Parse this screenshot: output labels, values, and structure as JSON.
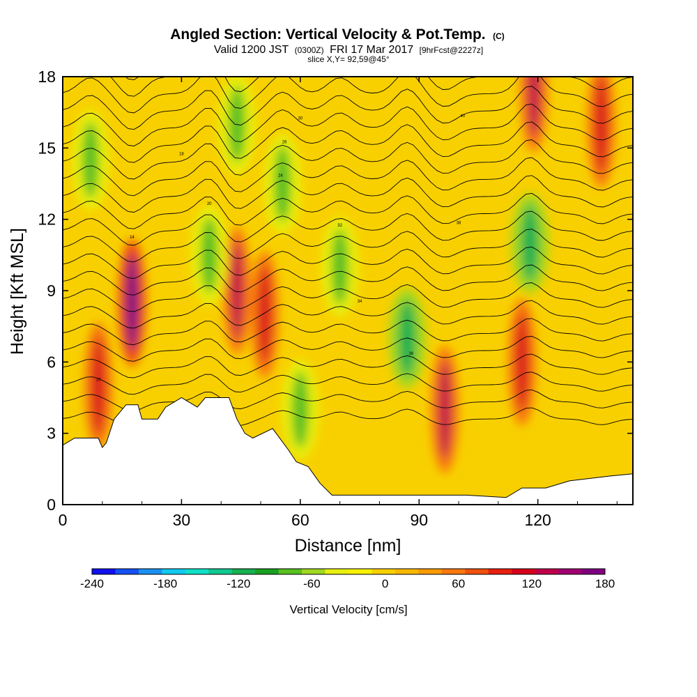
{
  "header": {
    "title": "Angled Section: Vertical Velocity & Pot.Temp.",
    "copyright": "(C)",
    "valid_prefix": "Valid 1200 JST",
    "valid_utc": "(0300Z)",
    "valid_date": "FRI 17 Mar 2017",
    "forecast": "[9hrFcst@2227z]",
    "slice": "slice X,Y= 92,59@45°"
  },
  "chart_data": {
    "type": "heatmap",
    "title": "Angled Section: Vertical Velocity & Pot.Temp.",
    "xlabel": "Distance [nm]",
    "ylabel": "Height [Kft MSL]",
    "xlim": [
      0,
      144
    ],
    "ylim": [
      0,
      18
    ],
    "x_ticks": [
      "0",
      "30",
      "60",
      "90",
      "120"
    ],
    "y_ticks": [
      "0",
      "3",
      "6",
      "9",
      "12",
      "15",
      "18"
    ],
    "colorbar": {
      "label": "Vertical Velocity [cm/s]",
      "range": [
        -240,
        180
      ],
      "ticks": [
        "-240",
        "-180",
        "-120",
        "-60",
        "0",
        "60",
        "120",
        "180"
      ],
      "colors": [
        "#1010ee",
        "#1550f5",
        "#1a90f2",
        "#10c8f0",
        "#10e0c8",
        "#10c890",
        "#18b050",
        "#18a020",
        "#5ac020",
        "#a0d820",
        "#e8f010",
        "#f8f000",
        "#f8d000",
        "#f8b800",
        "#f89a00",
        "#f87810",
        "#f05010",
        "#e82010",
        "#d8001a",
        "#c00048",
        "#a00070",
        "#800080"
      ]
    },
    "updrafts": [
      {
        "x": 9,
        "y": 5,
        "w_cms": 110
      },
      {
        "x": 17.5,
        "y": 8.5,
        "w_cms": 170
      },
      {
        "x": 44,
        "y": 9,
        "w_cms": 130
      },
      {
        "x": 51,
        "y": 8,
        "w_cms": 120
      },
      {
        "x": 96.5,
        "y": 4,
        "w_cms": 130
      },
      {
        "x": 116,
        "y": 6,
        "w_cms": 110
      },
      {
        "x": 119,
        "y": 17.5,
        "w_cms": 130
      },
      {
        "x": 136,
        "y": 16,
        "w_cms": 120
      }
    ],
    "downdrafts": [
      {
        "x": 7,
        "y": 14.5,
        "w_cms": -70
      },
      {
        "x": 37,
        "y": 10.5,
        "w_cms": -80
      },
      {
        "x": 44,
        "y": 16,
        "w_cms": -80
      },
      {
        "x": 55.5,
        "y": 13.5,
        "w_cms": -70
      },
      {
        "x": 60,
        "y": 4,
        "w_cms": -80
      },
      {
        "x": 70,
        "y": 10,
        "w_cms": -70
      },
      {
        "x": 87,
        "y": 7,
        "w_cms": -110
      },
      {
        "x": 118,
        "y": 11,
        "w_cms": -110
      }
    ],
    "contour_labels": [
      "10",
      "14",
      "18",
      "20",
      "24",
      "26",
      "30",
      "32",
      "34",
      "36",
      "38",
      "40"
    ]
  }
}
